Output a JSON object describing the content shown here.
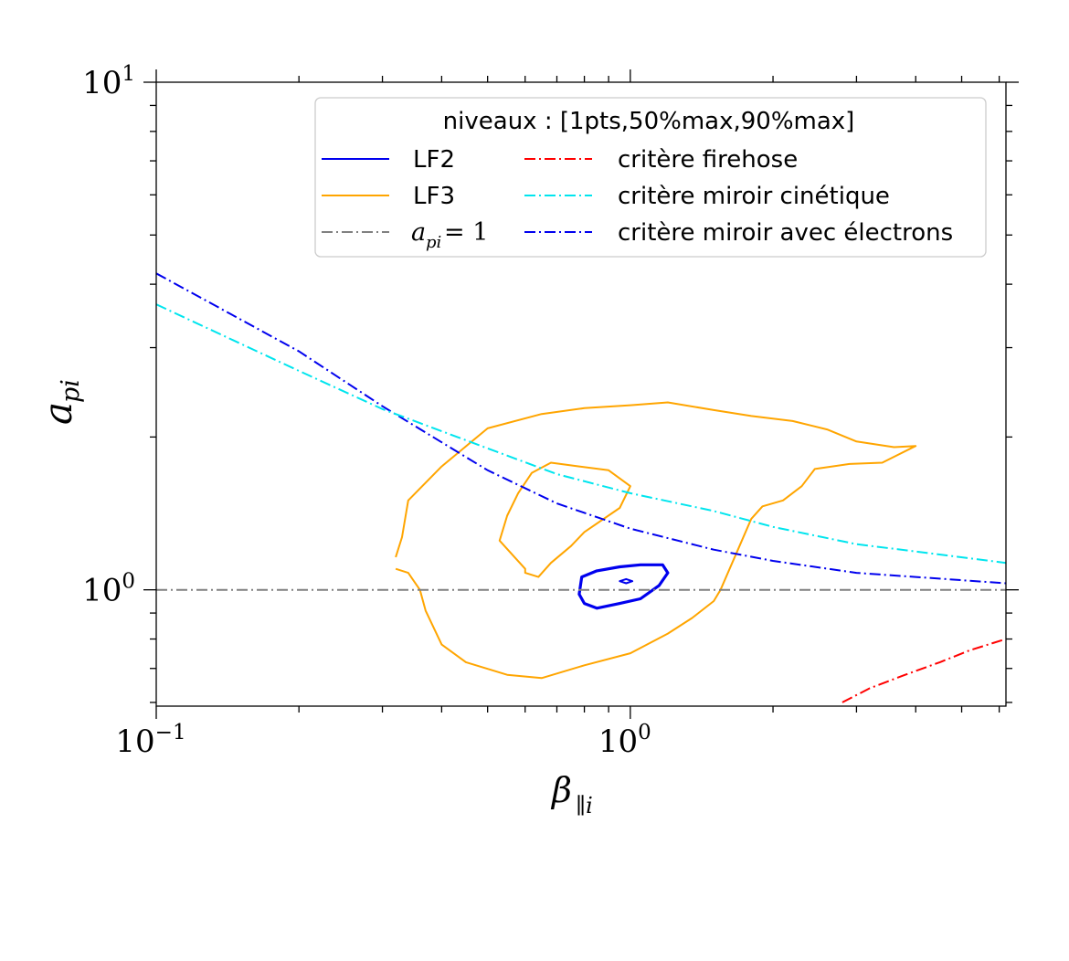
{
  "chart_data": {
    "type": "line",
    "x_scale": "log",
    "y_scale": "log",
    "xlim": [
      0.1,
      6.2
    ],
    "ylim": [
      0.59,
      10
    ],
    "xlabel": "β",
    "xlabel_sub": "∥i",
    "ylabel": "a",
    "ylabel_sub": "pi",
    "x_ticks": [
      {
        "value": 0.1,
        "base": "10",
        "exp": "−1"
      },
      {
        "value": 1,
        "base": "10",
        "exp": "0"
      }
    ],
    "y_ticks": [
      {
        "value": 1,
        "base": "10",
        "exp": "0"
      },
      {
        "value": 10,
        "base": "10",
        "exp": "1"
      }
    ],
    "grid": false,
    "legend": {
      "placement": "top-right",
      "title": "niveaux : [1pts,50%max,90%max]",
      "entries": [
        {
          "label": "LF2",
          "color": "#0000ee",
          "style": "solid"
        },
        {
          "label": "LF3",
          "color": "#ffa500",
          "style": "solid"
        },
        {
          "label_math_base": "a",
          "label_math_sub": "pi",
          "label_math_rest": " = 1",
          "color": "#808080",
          "style": "dashdot"
        },
        {
          "label": "critère firehose",
          "color": "#ff0000",
          "style": "dashdot"
        },
        {
          "label": "critère miroir cinétique",
          "color": "#00e5ee",
          "style": "dashdot"
        },
        {
          "label": "critère miroir avec électrons",
          "color": "#0000ee",
          "style": "dashdot"
        }
      ]
    },
    "series": [
      {
        "name": "critère miroir avec électrons",
        "color": "#0000ee",
        "style": "dashdot",
        "points": [
          [
            0.1,
            4.2
          ],
          [
            0.2,
            2.95
          ],
          [
            0.3,
            2.3
          ],
          [
            0.5,
            1.72
          ],
          [
            0.7,
            1.48
          ],
          [
            1.0,
            1.32
          ],
          [
            1.5,
            1.2
          ],
          [
            2.0,
            1.14
          ],
          [
            3.0,
            1.08
          ],
          [
            4.0,
            1.06
          ],
          [
            6.2,
            1.03
          ]
        ]
      },
      {
        "name": "critère miroir cinétique",
        "color": "#00e5ee",
        "style": "dashdot",
        "points": [
          [
            0.1,
            3.65
          ],
          [
            0.2,
            2.7
          ],
          [
            0.3,
            2.27
          ],
          [
            0.5,
            1.9
          ],
          [
            0.7,
            1.69
          ],
          [
            1.0,
            1.55
          ],
          [
            1.5,
            1.43
          ],
          [
            2.0,
            1.33
          ],
          [
            3.0,
            1.23
          ],
          [
            4.0,
            1.19
          ],
          [
            6.2,
            1.13
          ]
        ]
      },
      {
        "name": "critère firehose",
        "color": "#ff0000",
        "style": "dashdot",
        "points": [
          [
            2.8,
            0.6
          ],
          [
            3.2,
            0.64
          ],
          [
            3.8,
            0.68
          ],
          [
            4.5,
            0.72
          ],
          [
            5.2,
            0.76
          ],
          [
            6.2,
            0.8
          ]
        ]
      },
      {
        "name": "a_pi = 1",
        "color": "#808080",
        "style": "dashdot",
        "points": [
          [
            0.1,
            1.0
          ],
          [
            6.2,
            1.0
          ]
        ]
      }
    ],
    "contours": [
      {
        "name": "LF3",
        "level": "1pts",
        "color": "#ffa500",
        "closed": false,
        "points": [
          [
            0.32,
            1.16
          ],
          [
            0.33,
            1.27
          ],
          [
            0.34,
            1.5
          ],
          [
            0.4,
            1.75
          ],
          [
            0.5,
            2.08
          ],
          [
            0.65,
            2.22
          ],
          [
            0.8,
            2.28
          ],
          [
            1.0,
            2.31
          ],
          [
            1.2,
            2.34
          ],
          [
            1.5,
            2.26
          ],
          [
            1.8,
            2.2
          ],
          [
            2.2,
            2.15
          ],
          [
            2.6,
            2.07
          ],
          [
            3.0,
            1.96
          ],
          [
            3.6,
            1.91
          ],
          [
            4.0,
            1.92
          ],
          [
            3.4,
            1.78
          ],
          [
            2.9,
            1.77
          ],
          [
            2.45,
            1.73
          ],
          [
            2.3,
            1.6
          ],
          [
            2.1,
            1.5
          ],
          [
            1.9,
            1.46
          ],
          [
            1.8,
            1.38
          ],
          [
            1.7,
            1.22
          ],
          [
            1.55,
            1.0
          ],
          [
            1.5,
            0.95
          ],
          [
            1.35,
            0.88
          ],
          [
            1.2,
            0.82
          ],
          [
            1.0,
            0.75
          ],
          [
            0.8,
            0.71
          ],
          [
            0.65,
            0.67
          ],
          [
            0.55,
            0.68
          ],
          [
            0.45,
            0.72
          ],
          [
            0.4,
            0.78
          ],
          [
            0.37,
            0.91
          ],
          [
            0.36,
            1.0
          ],
          [
            0.34,
            1.08
          ],
          [
            0.32,
            1.1
          ]
        ]
      },
      {
        "name": "LF3",
        "level": "50%max",
        "color": "#ffa500",
        "closed": true,
        "points": [
          [
            0.6,
            1.1
          ],
          [
            0.57,
            1.16
          ],
          [
            0.53,
            1.25
          ],
          [
            0.55,
            1.4
          ],
          [
            0.58,
            1.55
          ],
          [
            0.62,
            1.7
          ],
          [
            0.68,
            1.78
          ],
          [
            0.78,
            1.75
          ],
          [
            0.9,
            1.72
          ],
          [
            1.0,
            1.6
          ],
          [
            0.95,
            1.45
          ],
          [
            0.8,
            1.3
          ],
          [
            0.75,
            1.22
          ],
          [
            0.68,
            1.13
          ],
          [
            0.64,
            1.06
          ],
          [
            0.6,
            1.08
          ]
        ]
      },
      {
        "name": "LF2",
        "level": "50%max",
        "color": "#0000ee",
        "closed": true,
        "points": [
          [
            0.78,
            0.98
          ],
          [
            0.8,
            0.94
          ],
          [
            0.85,
            0.92
          ],
          [
            0.95,
            0.94
          ],
          [
            1.05,
            0.96
          ],
          [
            1.15,
            1.02
          ],
          [
            1.2,
            1.08
          ],
          [
            1.17,
            1.12
          ],
          [
            1.05,
            1.12
          ],
          [
            0.95,
            1.11
          ],
          [
            0.85,
            1.09
          ],
          [
            0.79,
            1.06
          ]
        ]
      },
      {
        "name": "LF2",
        "level": "90%max",
        "color": "#0000ee",
        "closed": true,
        "points": [
          [
            0.95,
            1.04
          ],
          [
            0.98,
            1.03
          ],
          [
            1.01,
            1.04
          ],
          [
            0.98,
            1.05
          ]
        ]
      }
    ]
  }
}
